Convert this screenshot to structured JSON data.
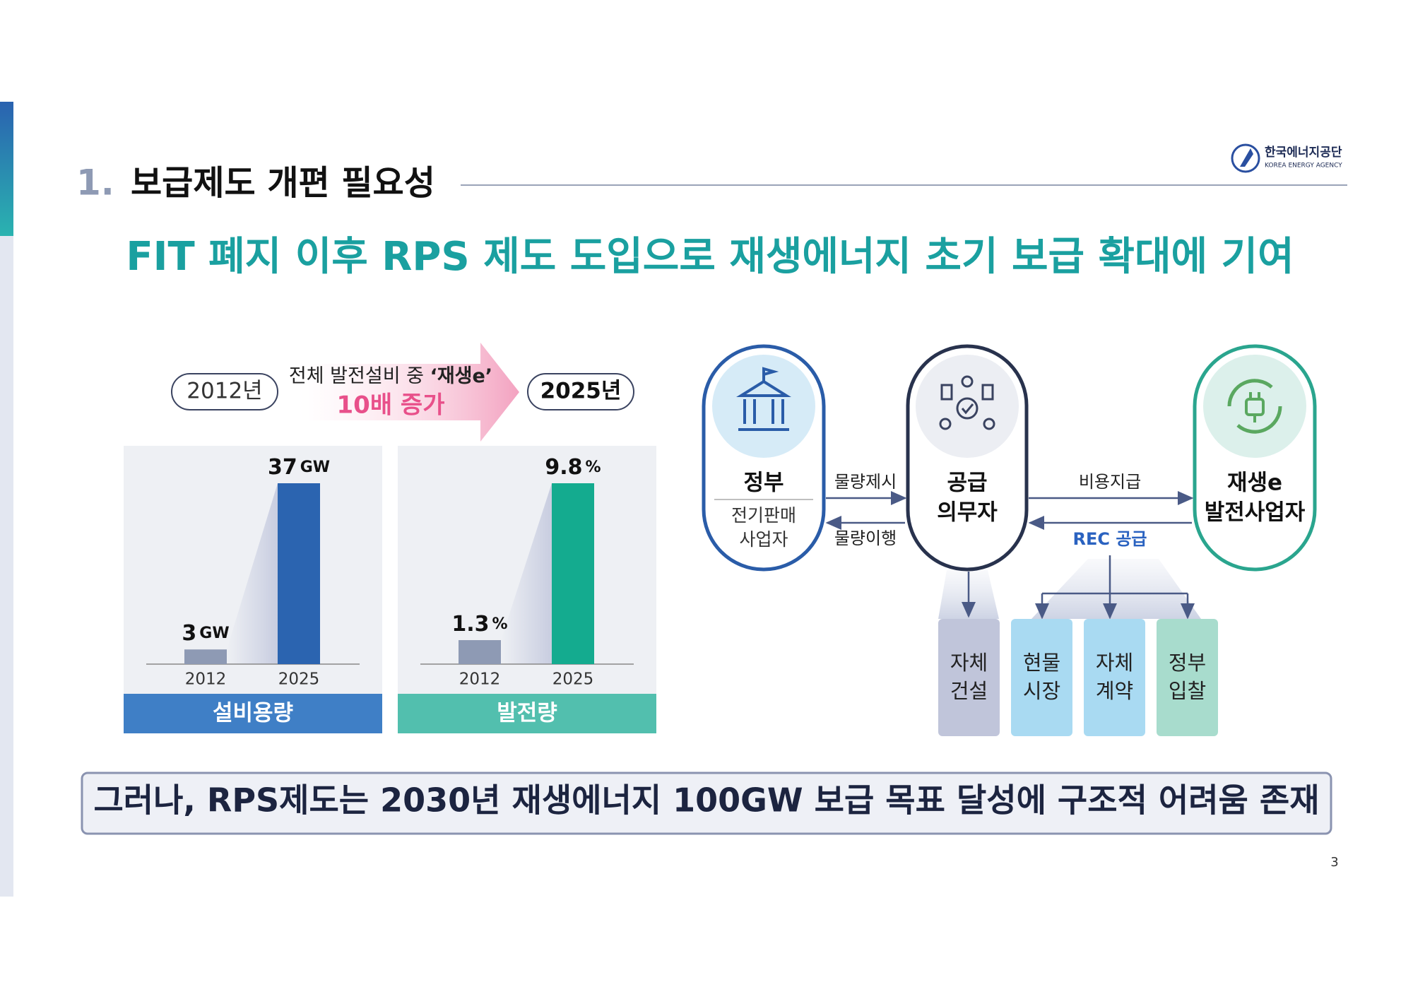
{
  "header": {
    "number": "1.",
    "title": "보급제도 개편 필요성",
    "logo": {
      "korean": "한국에너지공단",
      "english": "KOREA ENERGY AGENCY"
    }
  },
  "headline": "FIT 폐지 이후 RPS 제도 도입으로 재생에너지 초기 보급 확대에 기여",
  "growth": {
    "from": "2012년",
    "to": "2025년",
    "caption": "전체 발전설비 중 ",
    "highlight": "‘재생e’",
    "result": "10배 증가"
  },
  "charts": [
    {
      "type": "bar",
      "title": "설비용량",
      "unit": "GW",
      "colors": [
        "#8e9ab4",
        "#2b64b0"
      ],
      "label_color": "#3f7fc6",
      "categories": [
        "2012",
        "2025"
      ],
      "values": [
        3,
        37
      ]
    },
    {
      "type": "bar",
      "title": "발전량",
      "unit": "%",
      "colors": [
        "#8e9ab4",
        "#14ab8f"
      ],
      "label_color": "#52bfae",
      "categories": [
        "2012",
        "2025"
      ],
      "values": [
        1.3,
        9.8
      ]
    }
  ],
  "diagram": {
    "nodes": [
      {
        "title": [
          "정부"
        ],
        "subtitle": [
          "전기판매",
          "사업자"
        ]
      },
      {
        "title": [
          "공급",
          "의무자"
        ]
      },
      {
        "title": [
          "재생e",
          "발전사업자"
        ]
      }
    ],
    "edges": [
      "물량제시",
      "물량이행",
      "비용지급",
      "REC 공급"
    ],
    "options": [
      [
        "자체",
        "건설"
      ],
      [
        "현물",
        "시장"
      ],
      [
        "자체",
        "계약"
      ],
      [
        "정부",
        "입찰"
      ]
    ]
  },
  "conclusion": "그러나, RPS제도는 2030년 재생에너지 100GW 보급 목표 달성에 구조적 어려움 존재",
  "page_number": "3"
}
